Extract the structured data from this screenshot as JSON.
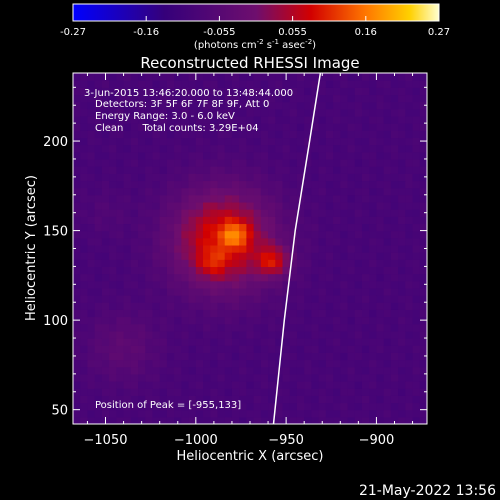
{
  "colorbar": {
    "ticks": [
      "-0.27",
      "-0.16",
      "-0.055",
      "0.055",
      "0.16",
      "0.27"
    ],
    "units_prefix": "(photons cm",
    "units_exp1": "-2",
    "units_mid": " s",
    "units_exp2": "-1",
    "units_suffix": " asec",
    "units_exp3": "-2",
    "units_close": ")",
    "range": [
      -0.27,
      0.27
    ]
  },
  "chart_data": {
    "type": "heatmap",
    "title": "Reconstructed RHESSI Image",
    "xlabel": "Heliocentric X (arcsec)",
    "ylabel": "Heliocentric Y (arcsec)",
    "xlim": [
      -1068,
      -872
    ],
    "ylim": [
      42,
      238
    ],
    "xticks": [
      -1050,
      -1000,
      -950,
      -900
    ],
    "xtick_labels": [
      "−1050",
      "−1000",
      "−950",
      "−900"
    ],
    "yticks": [
      50,
      100,
      150,
      200
    ],
    "ytick_labels": [
      "50",
      "100",
      "150",
      "200"
    ],
    "annotations": [
      "3-Jun-2015 13:46:20.000 to 13:48:44.000",
      "Detectors: 3F 5F 6F 7F 8F 9F, Att 0",
      "Energy Range: 3.0 - 6.0 keV",
      "Clean      Total counts: 3.29E+04"
    ],
    "peak_label": "Position of Peak = [-955,133]",
    "peak": [
      -955,
      133
    ],
    "limb_points": [
      [
        -931,
        238
      ],
      [
        -937,
        200
      ],
      [
        -945,
        150
      ],
      [
        -951,
        100
      ],
      [
        -957,
        42
      ]
    ],
    "sources": [
      {
        "x": -985,
        "y": 145,
        "sigma": 20,
        "amp": 0.19
      },
      {
        "x": -978,
        "y": 148,
        "sigma": 5,
        "amp": 0.1
      },
      {
        "x": -957,
        "y": 133,
        "sigma": 6,
        "amp": 0.13
      },
      {
        "x": -991,
        "y": 132,
        "sigma": 5,
        "amp": 0.06
      },
      {
        "x": -1040,
        "y": 85,
        "sigma": 14,
        "amp": 0.05
      },
      {
        "x": -1050,
        "y": 160,
        "sigma": 9,
        "amp": 0.02
      }
    ],
    "background": -0.09
  },
  "footer": {
    "timestamp": "21-May-2022 13:56"
  }
}
